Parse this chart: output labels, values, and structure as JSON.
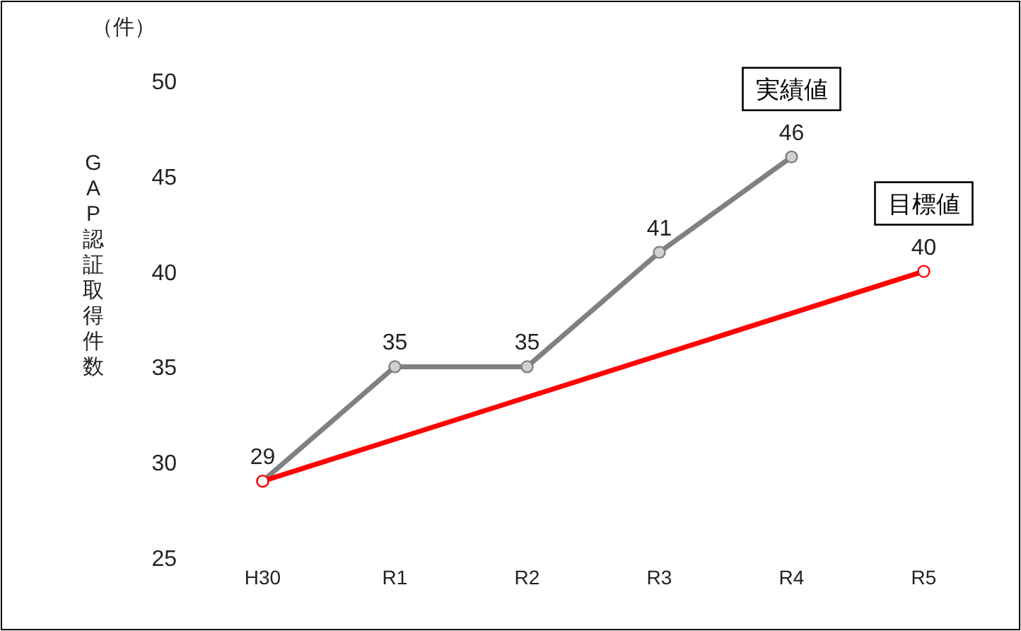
{
  "chart_data": {
    "type": "line",
    "ylabel": "GAP認証取得件数",
    "annotations": [
      "（件）"
    ],
    "categories": [
      "H30",
      "R1",
      "R2",
      "R3",
      "R4",
      "R5"
    ],
    "series": [
      {
        "name": "実績値",
        "color": "#808080",
        "values": [
          29,
          35,
          35,
          41,
          46,
          null
        ],
        "value_labels": [
          "29",
          "35",
          "35",
          "41",
          "46",
          null
        ]
      },
      {
        "name": "目標値",
        "color": "#ff0000",
        "values": [
          29,
          null,
          null,
          null,
          null,
          40
        ],
        "value_labels": [
          null,
          null,
          null,
          null,
          null,
          "40"
        ]
      }
    ],
    "ylim": [
      25,
      50
    ],
    "yticks": [
      25,
      30,
      35,
      40,
      45,
      50
    ],
    "marker": "circle",
    "line_style": "solid",
    "grid": false
  }
}
